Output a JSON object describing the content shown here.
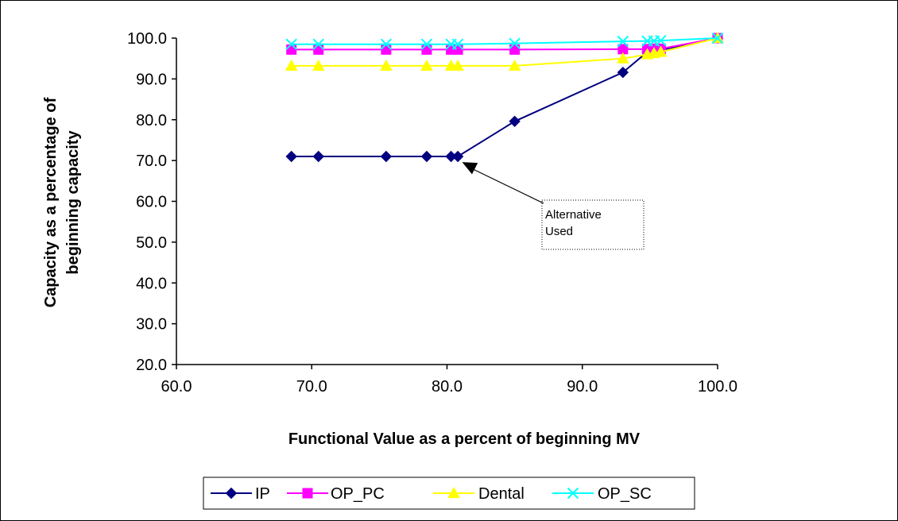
{
  "chart_data": {
    "type": "line",
    "title": "",
    "xlabel": "Functional Value as a percent of beginning MV",
    "ylabel": [
      "Capacity as a percentage of",
      "beginning capacity"
    ],
    "xlim": [
      60,
      100
    ],
    "ylim": [
      20,
      100
    ],
    "x_ticks": [
      "60.0",
      "70.0",
      "80.0",
      "90.0",
      "100.0"
    ],
    "y_ticks": [
      "20.0",
      "30.0",
      "40.0",
      "50.0",
      "60.0",
      "70.0",
      "80.0",
      "90.0",
      "100.0"
    ],
    "grid": false,
    "legend_position": "bottom",
    "series": [
      {
        "name": "IP",
        "color": "#000080",
        "marker": "diamond",
        "x": [
          68.5,
          70.5,
          75.5,
          78.5,
          80.3,
          80.8,
          85.0,
          93.0,
          94.8,
          95.3,
          95.8,
          100.0
        ],
        "y": [
          71.0,
          71.0,
          71.0,
          71.0,
          71.0,
          71.0,
          79.6,
          91.6,
          96.6,
          96.9,
          97.1,
          100.0
        ]
      },
      {
        "name": "OP_PC",
        "color": "#ff00ff",
        "marker": "square",
        "x": [
          68.5,
          70.5,
          75.5,
          78.5,
          80.3,
          80.8,
          85.0,
          93.0,
          94.8,
          95.3,
          95.8,
          100.0
        ],
        "y": [
          97.2,
          97.2,
          97.2,
          97.2,
          97.2,
          97.2,
          97.2,
          97.3,
          97.3,
          97.4,
          97.4,
          100.0
        ]
      },
      {
        "name": "Dental",
        "color": "#ffff00",
        "marker": "triangle",
        "x": [
          68.5,
          70.5,
          75.5,
          78.5,
          80.3,
          80.8,
          85.0,
          93.0,
          94.8,
          95.3,
          95.8,
          100.0
        ],
        "y": [
          93.2,
          93.2,
          93.2,
          93.2,
          93.2,
          93.2,
          93.2,
          95.0,
          96.0,
          96.3,
          96.6,
          100.0
        ]
      },
      {
        "name": "OP_SC",
        "color": "#00ffff",
        "marker": "x",
        "x": [
          68.5,
          70.5,
          75.5,
          78.5,
          80.3,
          80.8,
          85.0,
          93.0,
          94.8,
          95.3,
          95.8,
          100.0
        ],
        "y": [
          98.5,
          98.5,
          98.5,
          98.5,
          98.5,
          98.5,
          98.7,
          99.2,
          99.3,
          99.3,
          99.4,
          100.0
        ]
      }
    ],
    "annotation": {
      "lines": [
        "Alternative",
        "Used"
      ],
      "points_to": {
        "x": 81.0,
        "y": 70.0
      }
    }
  }
}
